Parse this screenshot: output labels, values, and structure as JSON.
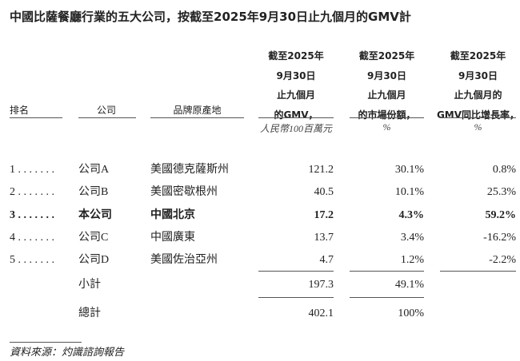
{
  "title": "中國比薩餐廳行業的五大公司，按截至2025年9月30日止九個月的GMV計",
  "headers": {
    "rank": "排名",
    "company": "公司",
    "origin": "品牌原產地",
    "gmv": [
      "截至2025年",
      "9月30日",
      "止九個月",
      "的GMV，"
    ],
    "share": [
      "截至2025年",
      "9月30日",
      "止九個月",
      "的市場份額，"
    ],
    "growth": [
      "截至2025年",
      "9月30日",
      "止九個月的",
      "GMV同比增長率，"
    ],
    "gmv_unit": "人民幣100百萬元",
    "share_unit": "%",
    "growth_unit": "%"
  },
  "rows": [
    {
      "rank": "1 . . . . . . .",
      "company": "公司A",
      "origin": "美國德克薩斯州",
      "gmv": "121.2",
      "share": "30.1%",
      "growth": "0.8%",
      "bold": false
    },
    {
      "rank": "2 . . . . . . .",
      "company": "公司B",
      "origin": "美國密歇根州",
      "gmv": "40.5",
      "share": "10.1%",
      "growth": "25.3%",
      "bold": false
    },
    {
      "rank": "3 . . . . . . .",
      "company": "本公司",
      "origin": "中國北京",
      "gmv": "17.2",
      "share": "4.3%",
      "growth": "59.2%",
      "bold": true
    },
    {
      "rank": "4 . . . . . . .",
      "company": "公司C",
      "origin": "中國廣東",
      "gmv": "13.7",
      "share": "3.4%",
      "growth": "-16.2%",
      "bold": false
    },
    {
      "rank": "5 . . . . . . .",
      "company": "公司D",
      "origin": "美國佐治亞州",
      "gmv": "4.7",
      "share": "1.2%",
      "growth": "-2.2%",
      "bold": false
    }
  ],
  "subtotal": {
    "label": "小計",
    "gmv": "197.3",
    "share": "49.1%"
  },
  "total": {
    "label": "總計",
    "gmv": "402.1",
    "share": "100%"
  },
  "source": "資料來源：灼識諮詢報告"
}
